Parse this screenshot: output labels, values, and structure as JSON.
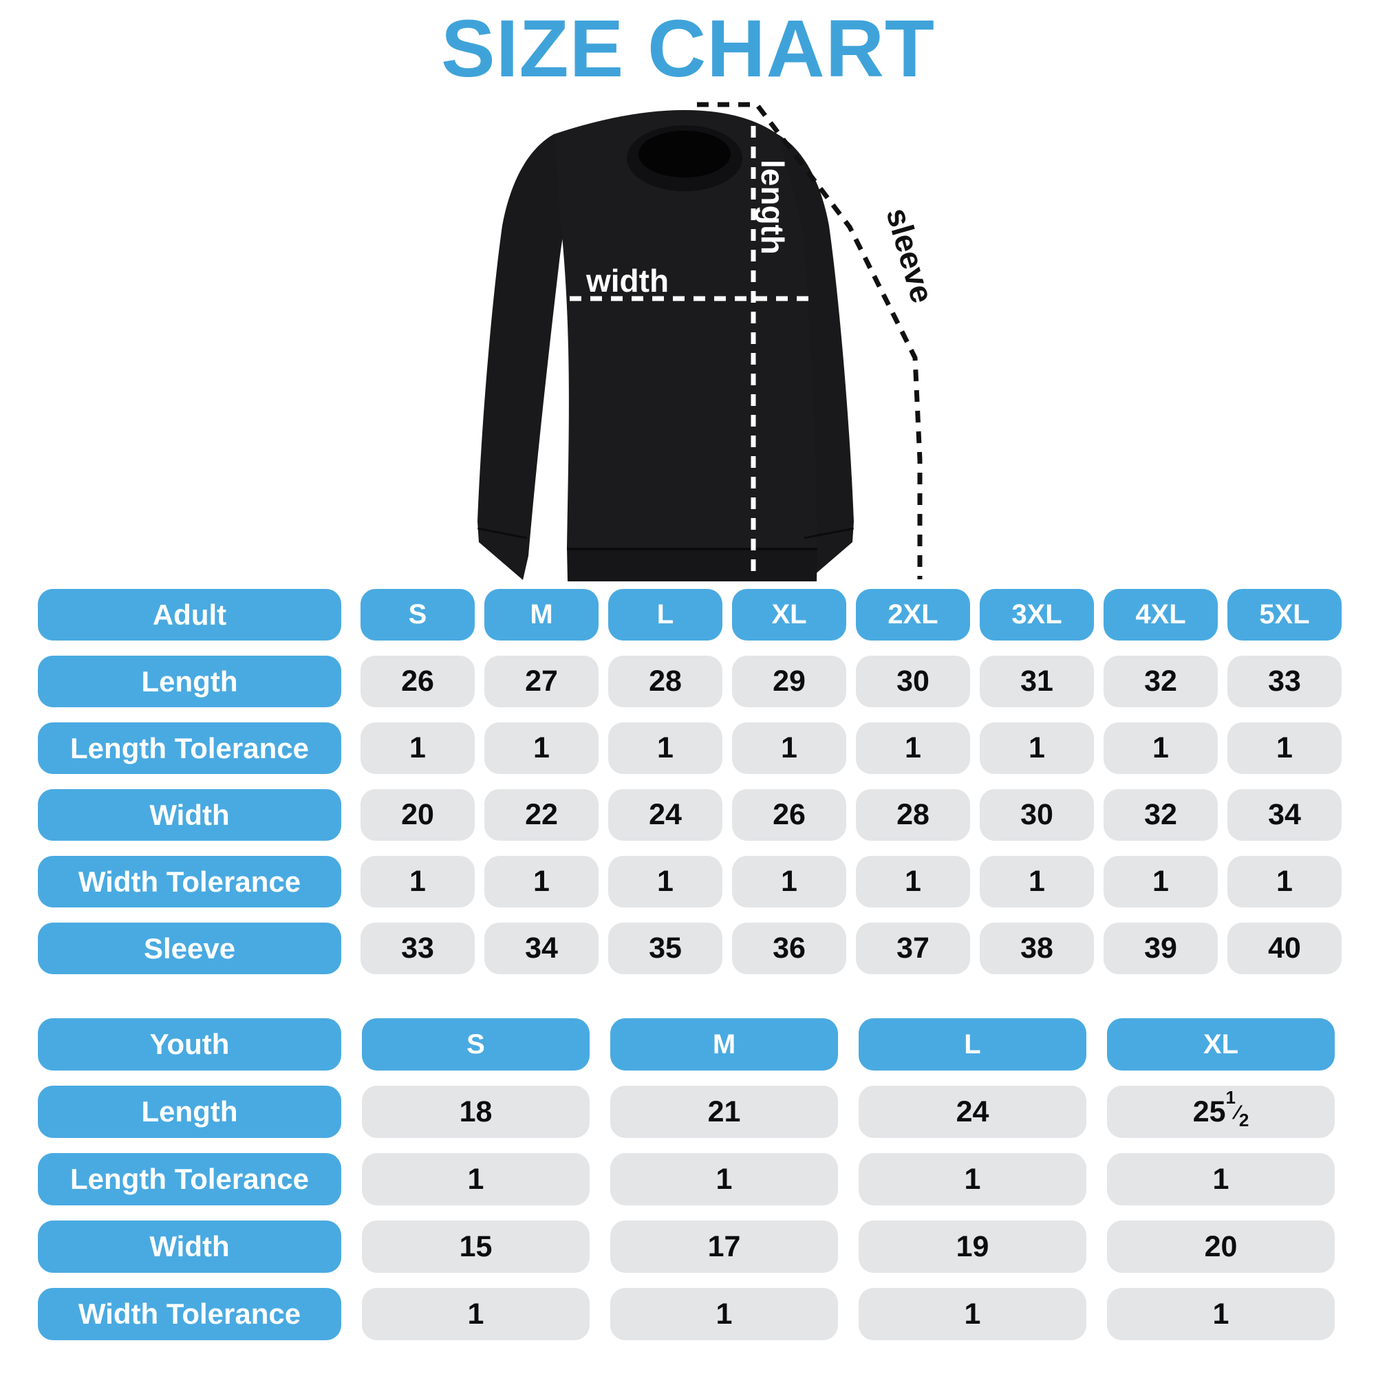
{
  "page": {
    "title": "SIZE CHART"
  },
  "colors": {
    "title_blue": "#3fa3da",
    "pill_blue": "#49aae1",
    "cell_gray": "#e4e5e7",
    "number_text": "#0d0d0d",
    "label_text": "#ffffff",
    "garment_black": "#1b1b1d"
  },
  "diagram": {
    "garment": "black crewneck sweatshirt",
    "labels": {
      "length": "length",
      "width": "width",
      "sleeve": "sleeve"
    }
  },
  "adult_table": {
    "header": {
      "label": "Adult",
      "sizes": [
        "S",
        "M",
        "L",
        "XL",
        "2XL",
        "3XL",
        "4XL",
        "5XL"
      ]
    },
    "rows": [
      {
        "label": "Length",
        "values": [
          "26",
          "27",
          "28",
          "29",
          "30",
          "31",
          "32",
          "33"
        ]
      },
      {
        "label": "Length Tolerance",
        "values": [
          "1",
          "1",
          "1",
          "1",
          "1",
          "1",
          "1",
          "1"
        ]
      },
      {
        "label": "Width",
        "values": [
          "20",
          "22",
          "24",
          "26",
          "28",
          "30",
          "32",
          "34"
        ]
      },
      {
        "label": "Width Tolerance",
        "values": [
          "1",
          "1",
          "1",
          "1",
          "1",
          "1",
          "1",
          "1"
        ]
      },
      {
        "label": "Sleeve",
        "values": [
          "33",
          "34",
          "35",
          "36",
          "37",
          "38",
          "39",
          "40"
        ]
      }
    ]
  },
  "youth_table": {
    "header": {
      "label": "Youth",
      "sizes": [
        "S",
        "M",
        "L",
        "XL"
      ]
    },
    "rows": [
      {
        "label": "Length",
        "values": [
          "18",
          "21",
          "24",
          "25½"
        ]
      },
      {
        "label": "Length Tolerance",
        "values": [
          "1",
          "1",
          "1",
          "1"
        ]
      },
      {
        "label": "Width",
        "values": [
          "15",
          "17",
          "19",
          "20"
        ]
      },
      {
        "label": "Width Tolerance",
        "values": [
          "1",
          "1",
          "1",
          "1"
        ]
      }
    ]
  },
  "chart_data": [
    {
      "type": "table",
      "title": "Adult",
      "columns": [
        "Adult",
        "S",
        "M",
        "L",
        "XL",
        "2XL",
        "3XL",
        "4XL",
        "5XL"
      ],
      "rows": [
        [
          "Length",
          26,
          27,
          28,
          29,
          30,
          31,
          32,
          33
        ],
        [
          "Length Tolerance",
          1,
          1,
          1,
          1,
          1,
          1,
          1,
          1
        ],
        [
          "Width",
          20,
          22,
          24,
          26,
          28,
          30,
          32,
          34
        ],
        [
          "Width Tolerance",
          1,
          1,
          1,
          1,
          1,
          1,
          1,
          1
        ],
        [
          "Sleeve",
          33,
          34,
          35,
          36,
          37,
          38,
          39,
          40
        ]
      ]
    },
    {
      "type": "table",
      "title": "Youth",
      "columns": [
        "Youth",
        "S",
        "M",
        "L",
        "XL"
      ],
      "rows": [
        [
          "Length",
          18,
          21,
          24,
          "25 1/2"
        ],
        [
          "Length Tolerance",
          1,
          1,
          1,
          1
        ],
        [
          "Width",
          15,
          17,
          19,
          20
        ],
        [
          "Width Tolerance",
          1,
          1,
          1,
          1
        ]
      ]
    }
  ]
}
